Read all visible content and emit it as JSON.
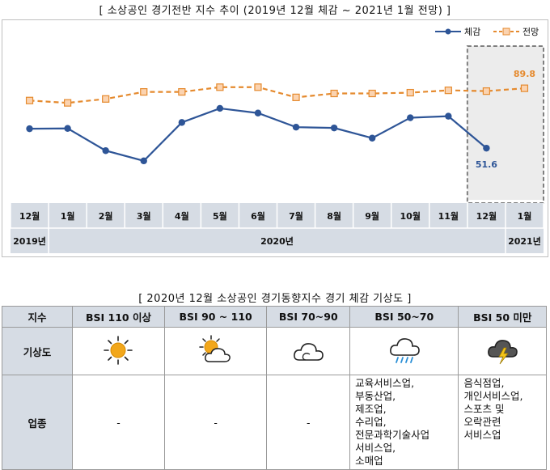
{
  "chart_title": "[ 소상공인 경기전반 지수 추이 (2019년 12월 체감 ~ 2021년 1월 전망) ]",
  "chart_data": {
    "type": "line",
    "categories": [
      "12월",
      "1월",
      "2월",
      "3월",
      "4월",
      "5월",
      "6월",
      "7월",
      "8월",
      "9월",
      "10월",
      "11월",
      "12월",
      "1월"
    ],
    "year_groups": [
      {
        "label": "2019년",
        "span": 1
      },
      {
        "label": "2020년",
        "span": 12
      },
      {
        "label": "2021년",
        "span": 1
      }
    ],
    "series": [
      {
        "name": "체감",
        "color": "#2e5597",
        "style": "solid",
        "marker": "circle",
        "values": [
          64,
          64.2,
          50,
          43.5,
          68,
          77,
          74,
          65,
          64.5,
          58,
          71,
          72,
          51.6,
          null
        ]
      },
      {
        "name": "전망",
        "color": "#e58a2e",
        "style": "dashed",
        "marker": "square",
        "values": [
          82,
          80.5,
          83,
          87.5,
          87.5,
          90.5,
          90.5,
          84,
          86.5,
          86.5,
          87,
          88.5,
          88,
          89.8
        ]
      }
    ],
    "data_labels": [
      {
        "series": "체감",
        "index": 12,
        "text": "51.6"
      },
      {
        "series": "전망",
        "index": 13,
        "text": "89.8"
      }
    ],
    "ylim": [
      30,
      110
    ],
    "legend_position": "top-right",
    "highlight_range": [
      12,
      13
    ],
    "grid": false
  },
  "table_title": "[ 2020년 12월 소상공인 경기동향지수 경기 체감 기상도 ]",
  "table": {
    "header_label": "지수",
    "columns": [
      {
        "label": "BSI 110 이상",
        "icon": "sun-icon"
      },
      {
        "label": "BSI 90 ~ 110",
        "icon": "partly-cloudy-icon"
      },
      {
        "label": "BSI 70~90",
        "icon": "cloud-icon"
      },
      {
        "label": "BSI 50~70",
        "icon": "rain-icon"
      },
      {
        "label": "BSI 50 미만",
        "icon": "thunderstorm-icon"
      }
    ],
    "weather_label": "기상도",
    "industry_label": "업종",
    "industries": [
      [
        "-"
      ],
      [
        "-"
      ],
      [
        "-"
      ],
      [
        "교육서비스업,",
        "부동산업,",
        "제조업,",
        "수리업,",
        "전문과학기술사업",
        "서비스업,",
        "소매업"
      ],
      [
        "음식점업,",
        "개인서비스업,",
        "스포츠 및",
        "오락관련",
        "서비스업"
      ]
    ]
  },
  "colors": {
    "header_bg": "#d6dce4",
    "axis_band": "#d6dce4",
    "felt_line": "#2e5597",
    "outlook_line": "#e58a2e"
  }
}
